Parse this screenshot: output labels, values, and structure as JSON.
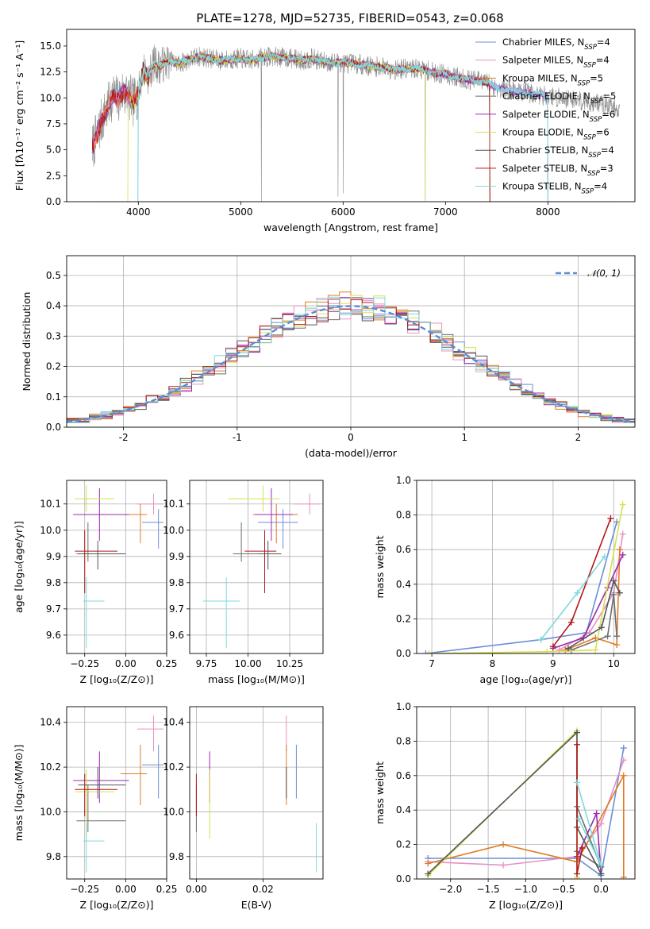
{
  "figure": {
    "title": "PLATE=1278, MJD=52735, FIBERID=0543, z=0.068"
  },
  "chart_data": [
    {
      "id": "spectrum",
      "type": "line",
      "title": "PLATE=1278, MJD=52735, FIBERID=0543, z=0.068",
      "xlabel": "wavelength [Angstrom, rest frame]",
      "ylabel": "Flux [fλ10⁻¹⁷ erg cm⁻² s⁻¹ A⁻¹]",
      "xlim": [
        3300,
        8850
      ],
      "ylim": [
        0,
        16.6
      ],
      "xticks": [
        4000,
        5000,
        6000,
        7000,
        8000
      ],
      "yticks": [
        0.0,
        2.5,
        5.0,
        7.5,
        10.0,
        12.5,
        15.0
      ],
      "grid": false,
      "legend_position": "right",
      "data_x": [
        3550,
        3600,
        3650,
        3700,
        3750,
        3800,
        3850,
        3900,
        3950,
        4000,
        4050,
        4100,
        4150,
        4200,
        4300,
        4400,
        4500,
        4600,
        4700,
        4800,
        4900,
        5000,
        5100,
        5200,
        5300,
        5400,
        5500,
        5600,
        5700,
        5800,
        5900,
        6000,
        6100,
        6200,
        6300,
        6400,
        6500,
        6600,
        6700,
        6800,
        6900,
        7000,
        7100,
        7200,
        7300,
        7400,
        7450,
        7500,
        7600,
        7700,
        7800,
        7900,
        8000,
        8100,
        8200,
        8300,
        8400,
        8500,
        8600,
        8700
      ],
      "data_y": [
        5.2,
        6.5,
        8.0,
        9.0,
        10.3,
        9.8,
        10.6,
        10.2,
        9.5,
        10.5,
        12.8,
        12.0,
        13.4,
        13.0,
        13.6,
        13.3,
        13.7,
        14.0,
        13.8,
        13.6,
        13.7,
        13.8,
        13.6,
        13.9,
        14.0,
        13.9,
        13.8,
        13.6,
        13.8,
        13.5,
        13.4,
        13.4,
        13.3,
        13.2,
        13.0,
        13.0,
        12.7,
        12.8,
        12.8,
        12.7,
        12.4,
        12.3,
        12.0,
        11.8,
        11.7,
        11.5,
        11.2,
        11.0,
        10.8,
        10.6,
        10.5,
        10.3,
        10.2,
        10.0,
        10.0,
        9.8,
        9.6,
        9.5,
        9.2,
        9.0
      ],
      "series": [
        {
          "name": "Chabrier MILES, N_SSP=4",
          "color": "#6b8fd6"
        },
        {
          "name": "Salpeter MILES, N_SSP=4",
          "color": "#e891c0"
        },
        {
          "name": "Kroupa MILES, N_SSP=5",
          "color": "#e07b22"
        },
        {
          "name": "Chabrier ELODIE, N_SSP=5",
          "color": "#6e6e6e"
        },
        {
          "name": "Salpeter ELODIE, N_SSP=6",
          "color": "#9b27b0"
        },
        {
          "name": "Kroupa ELODIE, N_SSP=6",
          "color": "#d7e04d"
        },
        {
          "name": "Chabrier STELIB, N_SSP=4",
          "color": "#555555"
        },
        {
          "name": "Salpeter STELIB, N_SSP=3",
          "color": "#b01818"
        },
        {
          "name": "Kroupa STELIB, N_SSP=4",
          "color": "#7fd8dc"
        }
      ],
      "legend_entries": [
        {
          "text": "Chabrier MILES, N",
          "sub": "SSP",
          "tail": "=4"
        },
        {
          "text": "Salpeter MILES, N",
          "sub": "SSP",
          "tail": "=4"
        },
        {
          "text": "Kroupa MILES, N",
          "sub": "SSP",
          "tail": "=5"
        },
        {
          "text": "Chabrier ELODIE, N",
          "sub": "SSP",
          "tail": "=5"
        },
        {
          "text": "Salpeter ELODIE, N",
          "sub": "SSP",
          "tail": "=6"
        },
        {
          "text": "Kroupa ELODIE, N",
          "sub": "SSP",
          "tail": "=6"
        },
        {
          "text": "Chabrier STELIB, N",
          "sub": "SSP",
          "tail": "=4"
        },
        {
          "text": "Salpeter STELIB, N",
          "sub": "SSP",
          "tail": "=3"
        },
        {
          "text": "Kroupa STELIB, N",
          "sub": "SSP",
          "tail": "=4"
        }
      ]
    },
    {
      "id": "residuals",
      "type": "line",
      "xlabel": "(data-model)/error",
      "ylabel": "Normed distribution",
      "xlim": [
        -2.5,
        2.5
      ],
      "ylim": [
        0,
        0.565
      ],
      "xticks": [
        -2,
        -1,
        0,
        1,
        2
      ],
      "yticks": [
        0.0,
        0.1,
        0.2,
        0.3,
        0.4,
        0.5
      ],
      "grid": true,
      "legend": "𝒩(0, 1)",
      "legend_position": "top-right",
      "bin_edges_start": -2.5,
      "bin_width": 0.1
    },
    {
      "id": "z-age",
      "type": "scatter",
      "xlabel": "Z [log₁₀(Z/Z⊙)]",
      "ylabel": "age  [log₁₀(age/yr)]",
      "xlim": [
        -0.36,
        0.25
      ],
      "ylim": [
        9.53,
        10.19
      ],
      "xticks": [
        -0.25,
        0.0,
        0.25
      ],
      "xticklabels": [
        "−0.25",
        "0.00",
        "0.25"
      ],
      "yticks": [
        9.6,
        9.7,
        9.8,
        9.9,
        10.0,
        10.1
      ],
      "grid": true
    },
    {
      "id": "mass-age",
      "type": "scatter",
      "xlabel": "mass [log₁₀(M/M⊙)]",
      "xlim": [
        9.65,
        10.45
      ],
      "ylim": [
        9.53,
        10.19
      ],
      "xticks": [
        9.75,
        10.0,
        10.25
      ],
      "xticklabels": [
        "9.75",
        "10.00",
        "10.25"
      ],
      "yticks": [
        9.6,
        9.7,
        9.8,
        9.9,
        10.0,
        10.1
      ],
      "grid": true
    },
    {
      "id": "age-weight",
      "type": "line",
      "xlabel": "age  [log₁₀(age/yr)]",
      "ylabel": "mass weight",
      "xlim": [
        6.75,
        10.35
      ],
      "ylim": [
        0,
        1.0
      ],
      "xticks": [
        7,
        8,
        9,
        10
      ],
      "yticks": [
        0.0,
        0.2,
        0.4,
        0.6,
        0.8,
        1.0
      ],
      "grid": true
    },
    {
      "id": "z-mass",
      "type": "scatter",
      "xlabel": "Z [log₁₀(Z/Z⊙)]",
      "ylabel": "mass [log₁₀(M/M⊙)]",
      "xlim": [
        -0.36,
        0.25
      ],
      "ylim": [
        9.7,
        10.47
      ],
      "xticks": [
        -0.25,
        0.0,
        0.25
      ],
      "xticklabels": [
        "−0.25",
        "0.00",
        "0.25"
      ],
      "yticks": [
        9.8,
        10.0,
        10.2,
        10.4
      ],
      "grid": true
    },
    {
      "id": "ebv-mass",
      "type": "scatter",
      "xlabel": "E(B-V)",
      "xlim": [
        -0.002,
        0.038
      ],
      "ylim": [
        9.7,
        10.47
      ],
      "xticks": [
        0.0,
        0.02
      ],
      "xticklabels": [
        "0.00",
        "0.02"
      ],
      "yticks": [
        9.8,
        10.0,
        10.2,
        10.4
      ],
      "grid": true
    },
    {
      "id": "z-weight",
      "type": "line",
      "xlabel": "Z [log₁₀(Z/Z⊙)]",
      "ylabel": "mass weight",
      "xlim": [
        -2.45,
        0.45
      ],
      "ylim": [
        0,
        1.0
      ],
      "xticks": [
        -2.0,
        -1.5,
        -1.0,
        -0.5,
        0.0
      ],
      "xticklabels": [
        "−2.0",
        "−1.5",
        "−1.0",
        "−0.5",
        "0.0"
      ],
      "yticks": [
        0.0,
        0.2,
        0.4,
        0.6,
        0.8,
        1.0
      ],
      "grid": true
    }
  ],
  "fits": [
    {
      "z": 0.2,
      "z_lo": 0.1,
      "z_hi": 0.23,
      "age": 10.03,
      "age_lo": 9.93,
      "age_hi": 10.08,
      "mass": 10.21,
      "mass_lo": 10.06,
      "mass_hi": 10.3,
      "ebv": 0.03
    },
    {
      "z": 0.17,
      "z_lo": 0.07,
      "z_hi": 0.23,
      "age": 10.1,
      "age_lo": 10.06,
      "age_hi": 10.14,
      "mass": 10.37,
      "mass_lo": 10.27,
      "mass_hi": 10.43,
      "ebv": 0.027
    },
    {
      "z": 0.09,
      "z_lo": -0.03,
      "z_hi": 0.13,
      "age": 10.06,
      "age_lo": 9.95,
      "age_hi": 10.1,
      "mass": 10.17,
      "mass_lo": 10.03,
      "mass_hi": 10.3,
      "ebv": 0.027
    },
    {
      "z": -0.23,
      "z_lo": -0.3,
      "z_hi": 0.0,
      "age": 9.91,
      "age_lo": 9.88,
      "age_hi": 10.03,
      "mass": 9.96,
      "mass_lo": 9.91,
      "mass_hi": 10.12,
      "ebv": 0.0
    },
    {
      "z": -0.16,
      "z_lo": -0.32,
      "z_hi": 0.02,
      "age": 10.06,
      "age_lo": 9.96,
      "age_hi": 10.16,
      "mass": 10.14,
      "mass_lo": 10.04,
      "mass_hi": 10.27,
      "ebv": 0.004
    },
    {
      "z": -0.24,
      "z_lo": -0.31,
      "z_hi": -0.07,
      "age": 10.12,
      "age_lo": 10.07,
      "age_hi": 10.17,
      "mass": 10.09,
      "mass_lo": 9.88,
      "mass_hi": 10.19,
      "ebv": 0.004
    },
    {
      "z": -0.17,
      "z_lo": -0.29,
      "z_hi": 0.0,
      "age": 9.91,
      "age_lo": 9.85,
      "age_hi": 9.96,
      "mass": 10.12,
      "mass_lo": 10.06,
      "mass_hi": 10.2,
      "ebv": 0.027
    },
    {
      "z": -0.25,
      "z_lo": -0.31,
      "z_hi": -0.05,
      "age": 9.92,
      "age_lo": 9.76,
      "age_hi": 10.0,
      "mass": 10.1,
      "mass_lo": 9.98,
      "mass_hi": 10.17,
      "ebv": 0.0
    },
    {
      "z": -0.24,
      "z_lo": -0.26,
      "z_hi": -0.13,
      "age": 9.73,
      "age_lo": 9.55,
      "age_hi": 9.82,
      "mass": 9.87,
      "mass_lo": 9.73,
      "mass_hi": 9.95,
      "ebv": 0.036
    }
  ]
}
